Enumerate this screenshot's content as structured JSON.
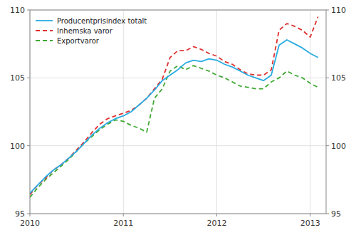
{
  "chart_data": {
    "type": "line",
    "x": [
      2010,
      2010.0833333333333,
      2010.1666666666667,
      2010.25,
      2010.3333333333333,
      2010.4166666666667,
      2010.5,
      2010.5833333333333,
      2010.6666666666667,
      2010.75,
      2010.8333333333333,
      2010.9166666666667,
      2011,
      2011.0833333333333,
      2011.1666666666667,
      2011.25,
      2011.3333333333333,
      2011.4166666666667,
      2011.5,
      2011.5833333333333,
      2011.6666666666667,
      2011.75,
      2011.8333333333333,
      2011.9166666666667,
      2012,
      2012.0833333333333,
      2012.1666666666667,
      2012.25,
      2012.3333333333333,
      2012.4166666666667,
      2012.5,
      2012.5833333333333,
      2012.6666666666667,
      2012.75,
      2012.8333333333333,
      2012.9166666666667,
      2013,
      2013.0833333333333
    ],
    "series": [
      {
        "name": "Producentprisindex totalt",
        "color": "#29abe2",
        "line_style": "solid",
        "values": [
          96.5,
          97.1,
          97.7,
          98.2,
          98.6,
          99.1,
          99.6,
          100.2,
          100.8,
          101.3,
          101.7,
          102.0,
          102.2,
          102.5,
          103.0,
          103.5,
          104.1,
          104.8,
          105.2,
          105.6,
          106.1,
          106.3,
          106.2,
          106.4,
          106.3,
          106.0,
          105.8,
          105.5,
          105.2,
          105.0,
          104.8,
          105.2,
          107.4,
          107.8,
          107.5,
          107.2,
          106.8,
          106.5
        ]
      },
      {
        "name": "Inhemska varor",
        "color": "#e03030",
        "line_style": "dashed",
        "values": [
          96.4,
          97.1,
          97.6,
          98.2,
          98.6,
          99.1,
          99.7,
          100.3,
          101.0,
          101.6,
          102.0,
          102.2,
          102.4,
          102.6,
          103.0,
          103.5,
          104.2,
          104.9,
          106.5,
          107.0,
          107.0,
          107.3,
          107.1,
          106.8,
          106.6,
          106.2,
          106.0,
          105.6,
          105.3,
          105.2,
          105.2,
          105.6,
          108.5,
          109.0,
          108.8,
          108.5,
          108.0,
          109.5
        ]
      },
      {
        "name": "Exportvaror",
        "color": "#3ea832",
        "line_style": "dashed",
        "values": [
          96.2,
          96.9,
          97.5,
          98.0,
          98.5,
          99.0,
          99.6,
          100.2,
          100.7,
          101.2,
          101.6,
          101.9,
          101.8,
          101.5,
          101.3,
          101.0,
          103.5,
          104.2,
          105.5,
          105.9,
          105.6,
          105.9,
          105.7,
          105.5,
          105.2,
          105.0,
          104.7,
          104.4,
          104.3,
          104.2,
          104.2,
          104.7,
          105.0,
          105.5,
          105.2,
          105.0,
          104.6,
          104.3
        ]
      }
    ],
    "xlim": [
      2010.0,
      2013.17
    ],
    "xticks": [
      2010,
      2011,
      2012,
      2013
    ],
    "ylim": [
      95,
      110
    ],
    "yticks": [
      95,
      100,
      105,
      110
    ],
    "y2lim": [
      95,
      110
    ],
    "y2ticks": [
      95,
      100,
      105,
      110
    ],
    "grid": true,
    "legend": "upper left"
  }
}
